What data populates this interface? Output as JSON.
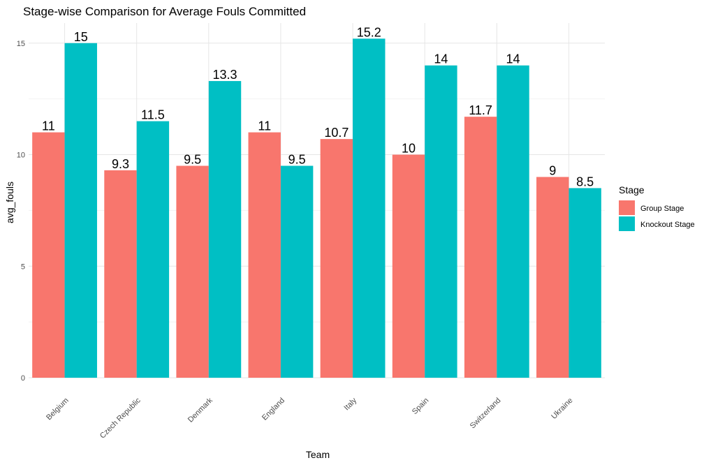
{
  "chart_data": {
    "type": "bar",
    "title": "Stage-wise Comparison for Average Fouls Committed",
    "xlabel": "Team",
    "ylabel": "avg_fouls",
    "categories": [
      "Belgium",
      "Czech Republic",
      "Denmark",
      "England",
      "Italy",
      "Spain",
      "Switzerland",
      "Ukraine"
    ],
    "series": [
      {
        "name": "Group Stage",
        "color": "#F8766D",
        "values": [
          11,
          9.3,
          9.5,
          11,
          10.7,
          10,
          11.7,
          9
        ]
      },
      {
        "name": "Knockout Stage",
        "color": "#00BFC4",
        "values": [
          15,
          11.5,
          13.3,
          9.5,
          15.2,
          14,
          14,
          8.5
        ]
      }
    ],
    "ylim": [
      0,
      15.9
    ],
    "yticks": [
      0,
      5,
      10,
      15
    ],
    "grid": true,
    "legend": {
      "title": "Stage",
      "placement": "right"
    }
  }
}
